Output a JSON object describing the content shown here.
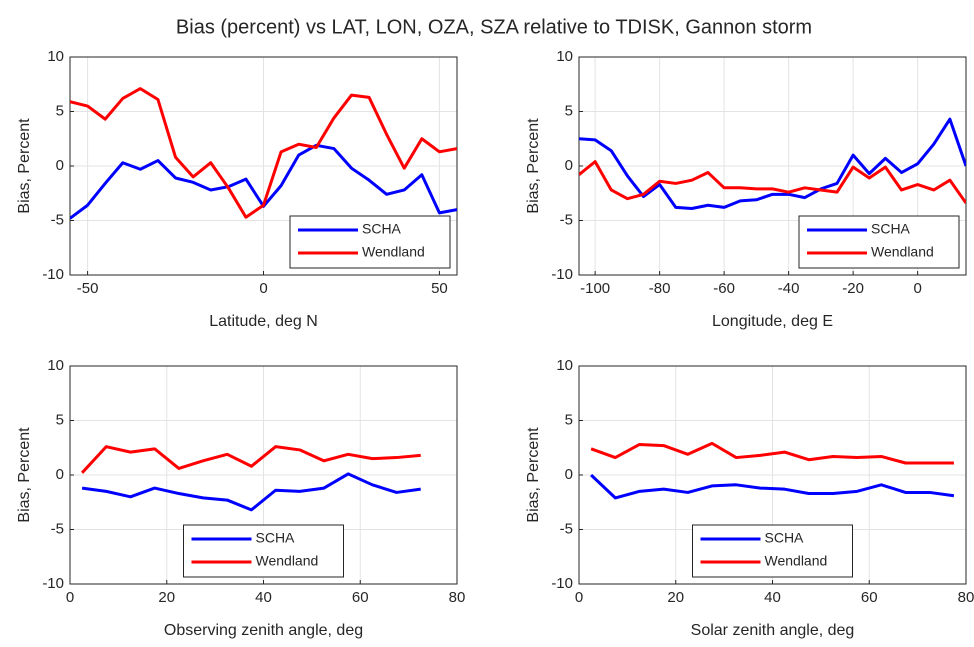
{
  "title": "Bias (percent) vs LAT, LON, OZA, SZA relative to TDISK, Gannon storm",
  "chart_data": [
    {
      "type": "line",
      "xlabel": "Latitude, deg N",
      "ylabel": "Bias, Percent",
      "x": [
        -55,
        -50,
        -45,
        -40,
        -35,
        -30,
        -25,
        -20,
        -15,
        -10,
        -5,
        0,
        5,
        10,
        15,
        20,
        25,
        30,
        35,
        40,
        45,
        50,
        55
      ],
      "series": [
        {
          "name": "SCHA",
          "color": "#0000ff",
          "values": [
            -4.8,
            -3.6,
            -1.6,
            0.3,
            -0.3,
            0.5,
            -1.1,
            -1.5,
            -2.2,
            -1.9,
            -1.2,
            -3.7,
            -1.8,
            1.0,
            1.9,
            1.6,
            -0.2,
            -1.3,
            -2.6,
            -2.2,
            -0.8,
            -4.3,
            -4.0
          ]
        },
        {
          "name": "Wendland",
          "color": "#ff0000",
          "values": [
            5.9,
            5.5,
            4.3,
            6.2,
            7.1,
            6.1,
            0.8,
            -1.0,
            0.3,
            -2.0,
            -4.7,
            -3.6,
            1.3,
            2.0,
            1.7,
            4.4,
            6.5,
            6.3,
            2.9,
            -0.2,
            2.5,
            1.3,
            1.6
          ]
        }
      ],
      "xlim": [
        -55,
        55
      ],
      "xticks": [
        -50,
        0,
        50
      ],
      "ylim": [
        -10,
        10
      ],
      "yticks": [
        -10,
        -5,
        0,
        5,
        10
      ],
      "grid": true,
      "legend": "southeast"
    },
    {
      "type": "line",
      "xlabel": "Longitude, deg E",
      "ylabel": "Bias, Percent",
      "x": [
        -105,
        -100,
        -95,
        -90,
        -85,
        -80,
        -75,
        -70,
        -65,
        -60,
        -55,
        -50,
        -45,
        -40,
        -35,
        -30,
        -25,
        -20,
        -15,
        -10,
        -5,
        0,
        5,
        10,
        15
      ],
      "series": [
        {
          "name": "SCHA",
          "color": "#0000ff",
          "values": [
            2.5,
            2.4,
            1.4,
            -0.9,
            -2.8,
            -1.7,
            -3.8,
            -3.9,
            -3.6,
            -3.8,
            -3.2,
            -3.1,
            -2.6,
            -2.6,
            -2.9,
            -2.1,
            -1.6,
            1.0,
            -0.7,
            0.7,
            -0.6,
            0.2,
            2.0,
            4.3,
            0
          ]
        },
        {
          "name": "Wendland",
          "color": "#ff0000",
          "values": [
            -0.8,
            0.4,
            -2.2,
            -3.0,
            -2.6,
            -1.4,
            -1.6,
            -1.3,
            -0.6,
            -2.0,
            -2.0,
            -2.1,
            -2.1,
            -2.4,
            -2.0,
            -2.2,
            -2.4,
            -0.1,
            -1.1,
            -0.1,
            -2.2,
            -1.7,
            -2.2,
            -1.3,
            -3.4
          ]
        }
      ],
      "xlim": [
        -105,
        15
      ],
      "xticks": [
        -100,
        -80,
        -60,
        -40,
        -20,
        0
      ],
      "ylim": [
        -10,
        10
      ],
      "yticks": [
        -10,
        -5,
        0,
        5,
        10
      ],
      "grid": true,
      "legend": "southeast"
    },
    {
      "type": "line",
      "xlabel": "Observing zenith angle, deg",
      "ylabel": "Bias, Percent",
      "x": [
        2.5,
        7.5,
        12.5,
        17.5,
        22.5,
        27.5,
        32.5,
        37.5,
        42.5,
        47.5,
        52.5,
        57.5,
        62.5,
        67.5,
        72.5
      ],
      "series": [
        {
          "name": "SCHA",
          "color": "#0000ff",
          "values": [
            -1.2,
            -1.5,
            -2.0,
            -1.2,
            -1.7,
            -2.1,
            -2.3,
            -3.2,
            -1.4,
            -1.5,
            -1.2,
            0.1,
            -0.9,
            -1.6,
            -1.3
          ]
        },
        {
          "name": "Wendland",
          "color": "#ff0000",
          "values": [
            0.2,
            2.6,
            2.1,
            2.4,
            0.6,
            1.3,
            1.9,
            0.8,
            2.6,
            2.3,
            1.3,
            1.9,
            1.5,
            1.6,
            1.8
          ]
        }
      ],
      "xlim": [
        0,
        80
      ],
      "xticks": [
        0,
        20,
        40,
        60,
        80
      ],
      "ylim": [
        -10,
        10
      ],
      "yticks": [
        -10,
        -5,
        0,
        5,
        10
      ],
      "grid": true,
      "legend": "south"
    },
    {
      "type": "line",
      "xlabel": "Solar zenith angle, deg",
      "ylabel": "Bias, Percent",
      "x": [
        2.5,
        7.5,
        12.5,
        17.5,
        22.5,
        27.5,
        32.5,
        37.5,
        42.5,
        47.5,
        52.5,
        57.5,
        62.5,
        67.5,
        72.5,
        77.5
      ],
      "series": [
        {
          "name": "SCHA",
          "color": "#0000ff",
          "values": [
            0,
            -2.1,
            -1.5,
            -1.3,
            -1.6,
            -1.0,
            -0.9,
            -1.2,
            -1.3,
            -1.7,
            -1.7,
            -1.5,
            -0.9,
            -1.6,
            -1.6,
            -1.9
          ]
        },
        {
          "name": "Wendland",
          "color": "#ff0000",
          "values": [
            2.4,
            1.6,
            2.8,
            2.7,
            1.9,
            2.9,
            1.6,
            1.8,
            2.1,
            1.4,
            1.7,
            1.6,
            1.7,
            1.1,
            1.1,
            1.1
          ]
        }
      ],
      "xlim": [
        0,
        80
      ],
      "xticks": [
        0,
        20,
        40,
        60,
        80
      ],
      "ylim": [
        -10,
        10
      ],
      "yticks": [
        -10,
        -5,
        0,
        5,
        10
      ],
      "grid": true,
      "legend": "south"
    }
  ]
}
